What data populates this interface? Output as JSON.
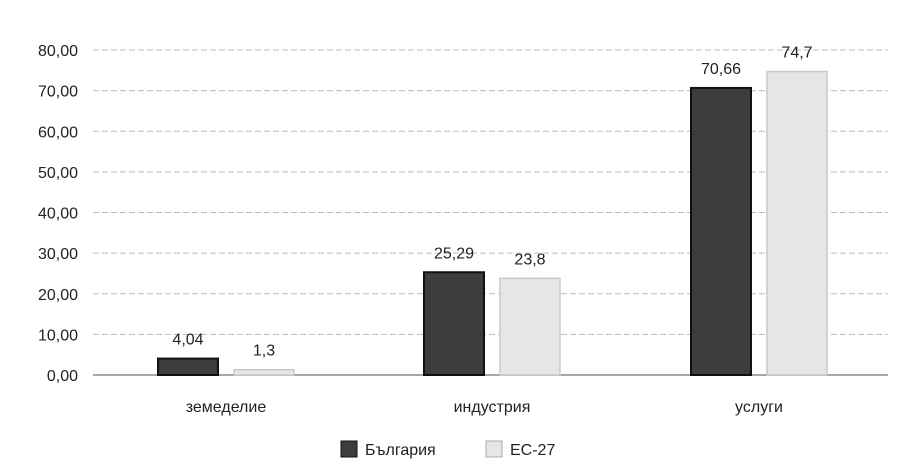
{
  "chart_data": {
    "type": "bar",
    "categories": [
      "земеделие",
      "индустрия",
      "услуги"
    ],
    "series": [
      {
        "name": "България",
        "values": [
          4.04,
          25.29,
          70.66
        ],
        "labels": [
          "4,04",
          "25,29",
          "70,66"
        ],
        "color": "#3d3d3d"
      },
      {
        "name": "ЕС-27",
        "values": [
          1.3,
          23.8,
          74.7
        ],
        "labels": [
          "1,3",
          "23,8",
          "74,7"
        ],
        "color": "#e6e6e6"
      }
    ],
    "ylim": [
      0,
      80
    ],
    "yticks": [
      "0,00",
      "10,00",
      "20,00",
      "30,00",
      "40,00",
      "50,00",
      "60,00",
      "70,00",
      "80,00"
    ],
    "grid": true,
    "legend_position": "bottom"
  }
}
